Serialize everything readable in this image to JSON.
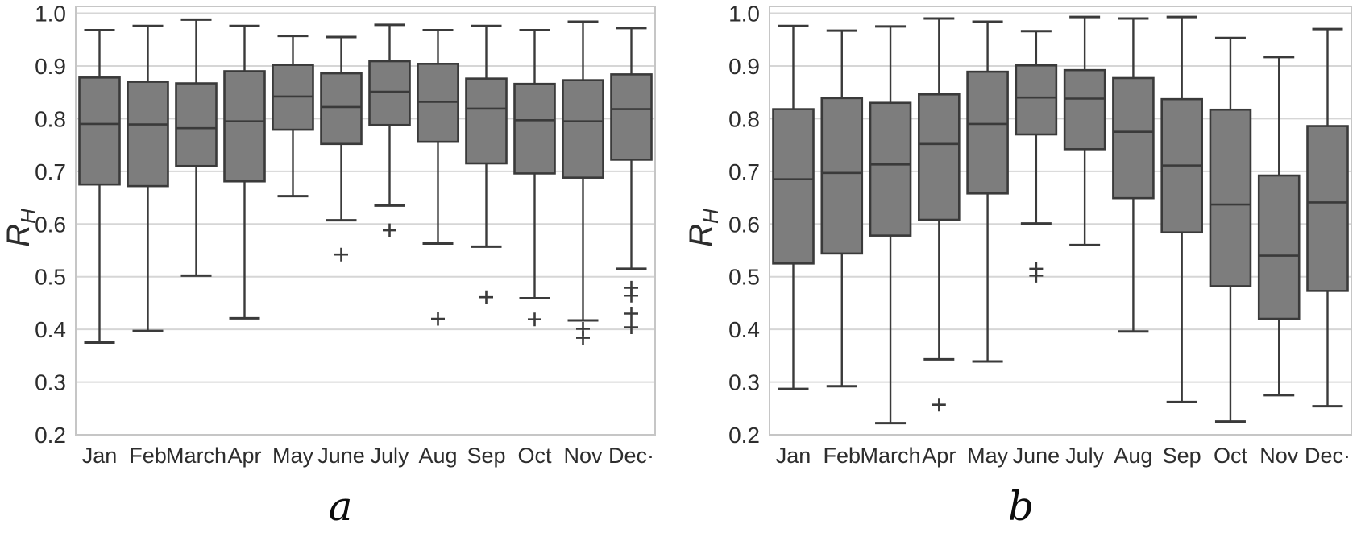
{
  "figure": {
    "description": "Two monthly box-and-whisker plots of relative humidity ratio RH",
    "background": "#ffffff"
  },
  "style": {
    "box_fill": "#7d7d7d",
    "box_edge": "#3a3a3a",
    "median_color": "#3a3a3a",
    "whisker_color": "#3a3a3a",
    "outlier_color": "#3a3a3a",
    "grid_color": "#d6d6d6",
    "spine_color": "#c6c6c6",
    "tick_label_color": "#2d2d2d",
    "caption_color": "#0d0d0d"
  },
  "chart_data": [
    {
      "id": "a",
      "type": "boxplot",
      "caption": "a",
      "ylabel": {
        "main": "R",
        "sub": "H"
      },
      "ylim": [
        0.2,
        1.0
      ],
      "ytick_labels": [
        "0.2",
        "0.3",
        "0.4",
        "0.5",
        "0.6",
        "0.7",
        "0.8",
        "0.9",
        "1.0"
      ],
      "categories": [
        "Jan",
        "Feb",
        "March",
        "Apr",
        "May",
        "June",
        "July",
        "Aug",
        "Sep",
        "Oct",
        "Nov",
        "Dec·"
      ],
      "grid": true,
      "boxes": [
        {
          "month": "Jan",
          "whislo": 0.375,
          "q1": 0.675,
          "med": 0.79,
          "q3": 0.878,
          "whishi": 0.968,
          "outliers": []
        },
        {
          "month": "Feb",
          "whislo": 0.397,
          "q1": 0.672,
          "med": 0.789,
          "q3": 0.87,
          "whishi": 0.976,
          "outliers": []
        },
        {
          "month": "March",
          "whislo": 0.502,
          "q1": 0.71,
          "med": 0.782,
          "q3": 0.867,
          "whishi": 0.988,
          "outliers": []
        },
        {
          "month": "Apr",
          "whislo": 0.421,
          "q1": 0.681,
          "med": 0.795,
          "q3": 0.89,
          "whishi": 0.976,
          "outliers": []
        },
        {
          "month": "May",
          "whislo": 0.653,
          "q1": 0.779,
          "med": 0.842,
          "q3": 0.902,
          "whishi": 0.957,
          "outliers": []
        },
        {
          "month": "June",
          "whislo": 0.607,
          "q1": 0.752,
          "med": 0.822,
          "q3": 0.886,
          "whishi": 0.955,
          "outliers": [
            0.542
          ]
        },
        {
          "month": "July",
          "whislo": 0.635,
          "q1": 0.788,
          "med": 0.851,
          "q3": 0.909,
          "whishi": 0.978,
          "outliers": [
            0.588
          ]
        },
        {
          "month": "Aug",
          "whislo": 0.563,
          "q1": 0.756,
          "med": 0.832,
          "q3": 0.904,
          "whishi": 0.968,
          "outliers": [
            0.42
          ]
        },
        {
          "month": "Sep",
          "whislo": 0.557,
          "q1": 0.715,
          "med": 0.819,
          "q3": 0.876,
          "whishi": 0.976,
          "outliers": [
            0.461
          ]
        },
        {
          "month": "Oct",
          "whislo": 0.459,
          "q1": 0.696,
          "med": 0.797,
          "q3": 0.866,
          "whishi": 0.968,
          "outliers": [
            0.419
          ]
        },
        {
          "month": "Nov",
          "whislo": 0.417,
          "q1": 0.688,
          "med": 0.795,
          "q3": 0.873,
          "whishi": 0.984,
          "outliers": [
            0.401,
            0.384
          ]
        },
        {
          "month": "Dec·",
          "whislo": 0.515,
          "q1": 0.722,
          "med": 0.818,
          "q3": 0.884,
          "whishi": 0.972,
          "outliers": [
            0.479,
            0.464,
            0.43,
            0.404
          ]
        }
      ]
    },
    {
      "id": "b",
      "type": "boxplot",
      "caption": "b",
      "ylabel": {
        "main": "R",
        "sub": "H"
      },
      "ylim": [
        0.2,
        1.0
      ],
      "ytick_labels": [
        "0.2",
        "0.3",
        "0.4",
        "0.5",
        "0.6",
        "0.7",
        "0.8",
        "0.9",
        "1.0"
      ],
      "categories": [
        "Jan",
        "Feb",
        "March",
        "Apr",
        "May",
        "June",
        "July",
        "Aug",
        "Sep",
        "Oct",
        "Nov",
        "Dec·"
      ],
      "grid": true,
      "boxes": [
        {
          "month": "Jan",
          "whislo": 0.287,
          "q1": 0.525,
          "med": 0.685,
          "q3": 0.818,
          "whishi": 0.976,
          "outliers": []
        },
        {
          "month": "Feb",
          "whislo": 0.292,
          "q1": 0.544,
          "med": 0.697,
          "q3": 0.839,
          "whishi": 0.967,
          "outliers": []
        },
        {
          "month": "March",
          "whislo": 0.222,
          "q1": 0.578,
          "med": 0.713,
          "q3": 0.83,
          "whishi": 0.975,
          "outliers": []
        },
        {
          "month": "Apr",
          "whislo": 0.343,
          "q1": 0.608,
          "med": 0.752,
          "q3": 0.846,
          "whishi": 0.99,
          "outliers": [
            0.257
          ]
        },
        {
          "month": "May",
          "whislo": 0.339,
          "q1": 0.658,
          "med": 0.79,
          "q3": 0.889,
          "whishi": 0.984,
          "outliers": []
        },
        {
          "month": "June",
          "whislo": 0.601,
          "q1": 0.77,
          "med": 0.84,
          "q3": 0.901,
          "whishi": 0.966,
          "outliers": [
            0.515,
            0.502
          ]
        },
        {
          "month": "July",
          "whislo": 0.56,
          "q1": 0.742,
          "med": 0.838,
          "q3": 0.892,
          "whishi": 0.993,
          "outliers": []
        },
        {
          "month": "Aug",
          "whislo": 0.396,
          "q1": 0.649,
          "med": 0.775,
          "q3": 0.877,
          "whishi": 0.99,
          "outliers": []
        },
        {
          "month": "Sep",
          "whislo": 0.262,
          "q1": 0.584,
          "med": 0.711,
          "q3": 0.837,
          "whishi": 0.993,
          "outliers": []
        },
        {
          "month": "Oct",
          "whislo": 0.225,
          "q1": 0.482,
          "med": 0.637,
          "q3": 0.817,
          "whishi": 0.953,
          "outliers": []
        },
        {
          "month": "Nov",
          "whislo": 0.275,
          "q1": 0.42,
          "med": 0.54,
          "q3": 0.692,
          "whishi": 0.917,
          "outliers": []
        },
        {
          "month": "Dec·",
          "whislo": 0.254,
          "q1": 0.473,
          "med": 0.641,
          "q3": 0.786,
          "whishi": 0.97,
          "outliers": []
        }
      ]
    }
  ]
}
